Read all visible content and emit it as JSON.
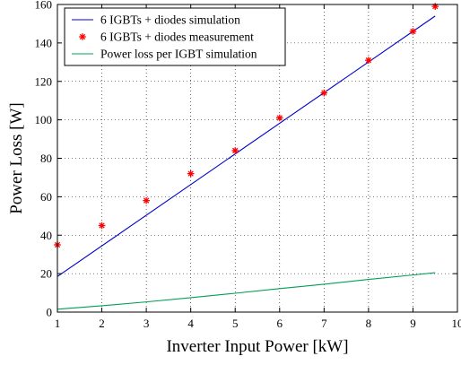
{
  "chart_data": {
    "type": "line",
    "title": "",
    "xlabel": "Inverter Input Power [kW]",
    "ylabel": "Power Loss [W]",
    "xlim": [
      1,
      10
    ],
    "ylim": [
      0,
      160
    ],
    "xticks": [
      1,
      2,
      3,
      4,
      5,
      6,
      7,
      8,
      9,
      10
    ],
    "yticks": [
      0,
      20,
      40,
      60,
      80,
      100,
      120,
      140,
      160
    ],
    "grid": true,
    "legend_position": "top-left",
    "series": [
      {
        "name": "6 IGBTs + diodes simulation",
        "style": "line",
        "color": "#0000cc",
        "x": [
          1,
          9.5
        ],
        "y": [
          18.5,
          154
        ]
      },
      {
        "name": "6 IGBTs + diodes measurement",
        "style": "markers",
        "marker": "asterisk",
        "color": "#ff0000",
        "x": [
          1,
          2,
          3,
          4,
          5,
          6,
          7,
          8,
          9,
          9.5
        ],
        "y": [
          35,
          45,
          58,
          72,
          84,
          101,
          114,
          131,
          146,
          159
        ]
      },
      {
        "name": "Power loss per IGBT simulation",
        "style": "line",
        "color": "#00a050",
        "x": [
          1,
          2,
          3,
          4,
          5,
          6,
          7,
          8,
          9,
          9.5
        ],
        "y": [
          1.5,
          3.3,
          5.3,
          7.5,
          9.8,
          12.2,
          14.5,
          17.0,
          19.3,
          20.5
        ]
      }
    ]
  }
}
